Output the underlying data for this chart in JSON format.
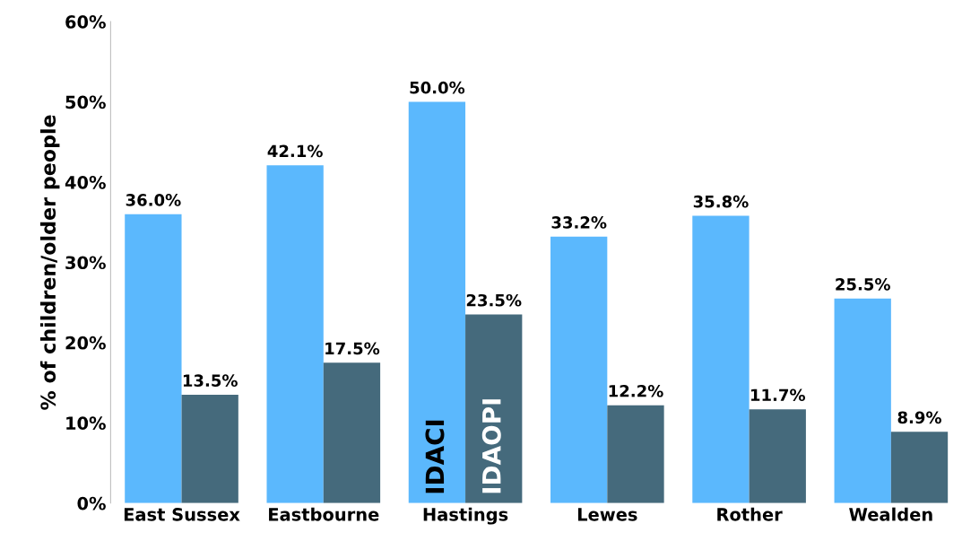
{
  "chart_data": {
    "type": "bar",
    "ylabel": "% of children/older people",
    "categories": [
      "East Sussex",
      "Eastbourne",
      "Hastings",
      "Lewes",
      "Rother",
      "Wealden"
    ],
    "series": [
      {
        "name": "IDACI",
        "color": "#5bb8fd",
        "values": [
          36.0,
          42.1,
          50.0,
          33.2,
          35.8,
          25.5
        ],
        "value_labels": [
          "36.0%",
          "42.1%",
          "50.0%",
          "33.2%",
          "35.8%",
          "25.5%"
        ]
      },
      {
        "name": "IDAOPI",
        "color": "#456a7c",
        "values": [
          13.5,
          17.5,
          23.5,
          12.2,
          11.7,
          8.9
        ],
        "value_labels": [
          "13.5%",
          "17.5%",
          "23.5%",
          "12.2%",
          "11.7%",
          "8.9%"
        ]
      }
    ],
    "ylim": [
      0,
      60
    ],
    "yticks": [
      {
        "value": 0,
        "label": "0%"
      },
      {
        "value": 10,
        "label": "10%"
      },
      {
        "value": 20,
        "label": "20%"
      },
      {
        "value": 30,
        "label": "30%"
      },
      {
        "value": 40,
        "label": "40%"
      },
      {
        "value": 50,
        "label": "50%"
      },
      {
        "value": 60,
        "label": "60%"
      }
    ],
    "grid": false,
    "legend": false
  }
}
